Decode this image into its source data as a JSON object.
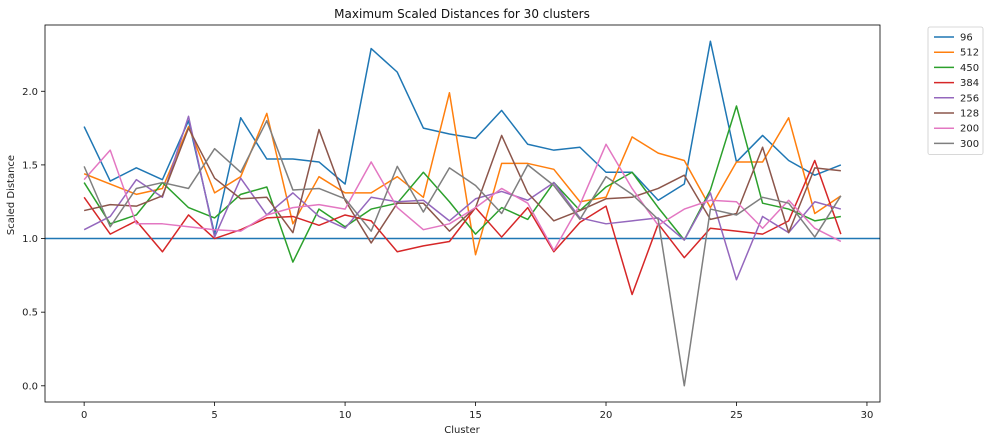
{
  "chart_data": {
    "type": "line",
    "title": "Maximum Scaled Distances for 30 clusters",
    "xlabel": "Cluster",
    "ylabel": "Scaled Distance",
    "xlim": [
      -1.5,
      30.5
    ],
    "ylim": [
      -0.11,
      2.45
    ],
    "xticks": [
      0,
      5,
      10,
      15,
      20,
      25,
      30
    ],
    "yticks": [
      0.0,
      0.5,
      1.0,
      1.5,
      2.0
    ],
    "grid": false,
    "legend_position": "outside-top-right",
    "reference_line": {
      "y": 1.0,
      "color": "#1f77b4"
    },
    "x": [
      0,
      1,
      2,
      3,
      4,
      5,
      6,
      7,
      8,
      9,
      10,
      11,
      12,
      13,
      14,
      15,
      16,
      17,
      18,
      19,
      20,
      21,
      22,
      23,
      24,
      25,
      26,
      27,
      28,
      29
    ],
    "series": [
      {
        "name": "96",
        "color": "#1f77b4",
        "values": [
          1.76,
          1.39,
          1.48,
          1.4,
          1.8,
          1.03,
          1.82,
          1.54,
          1.54,
          1.52,
          1.37,
          2.29,
          2.13,
          1.75,
          1.71,
          1.68,
          1.87,
          1.64,
          1.6,
          1.62,
          1.45,
          1.45,
          1.26,
          1.37,
          2.34,
          1.52,
          1.7,
          1.53,
          1.43,
          1.5
        ]
      },
      {
        "name": "512",
        "color": "#ff7f0e",
        "values": [
          1.44,
          1.37,
          1.3,
          1.34,
          1.76,
          1.31,
          1.42,
          1.85,
          1.1,
          1.42,
          1.31,
          1.31,
          1.42,
          1.28,
          1.99,
          0.89,
          1.51,
          1.51,
          1.47,
          1.25,
          1.28,
          1.69,
          1.58,
          1.53,
          1.21,
          1.52,
          1.52,
          1.82,
          1.17,
          1.29
        ]
      },
      {
        "name": "450",
        "color": "#2ca02c",
        "values": [
          1.38,
          1.1,
          1.16,
          1.38,
          1.21,
          1.14,
          1.3,
          1.35,
          0.84,
          1.2,
          1.08,
          1.2,
          1.24,
          1.45,
          1.25,
          1.03,
          1.21,
          1.13,
          1.38,
          1.19,
          1.35,
          1.45,
          1.21,
          0.99,
          1.33,
          1.9,
          1.24,
          1.2,
          1.12,
          1.15
        ]
      },
      {
        "name": "384",
        "color": "#d62728",
        "values": [
          1.28,
          1.03,
          1.12,
          0.91,
          1.16,
          1.0,
          1.06,
          1.14,
          1.15,
          1.09,
          1.16,
          1.12,
          0.91,
          0.95,
          0.98,
          1.21,
          1.01,
          1.21,
          0.91,
          1.11,
          1.22,
          0.62,
          1.1,
          0.87,
          1.07,
          1.05,
          1.03,
          1.12,
          1.53,
          1.03
        ]
      },
      {
        "name": "256",
        "color": "#9467bd",
        "values": [
          1.06,
          1.15,
          1.4,
          1.28,
          1.83,
          1.01,
          1.41,
          1.16,
          1.31,
          1.15,
          1.07,
          1.28,
          1.25,
          1.26,
          1.12,
          1.27,
          1.32,
          1.26,
          1.38,
          1.14,
          1.1,
          1.12,
          1.14,
          0.99,
          1.31,
          0.72,
          1.15,
          1.04,
          1.25,
          1.2
        ]
      },
      {
        "name": "128",
        "color": "#8c564b",
        "values": [
          1.19,
          1.23,
          1.22,
          1.29,
          1.75,
          1.41,
          1.27,
          1.28,
          1.04,
          1.74,
          1.26,
          0.97,
          1.24,
          1.24,
          1.05,
          1.21,
          1.7,
          1.31,
          1.12,
          1.19,
          1.27,
          1.28,
          1.34,
          1.43,
          1.13,
          1.17,
          1.62,
          1.04,
          1.48,
          1.46
        ]
      },
      {
        "name": "200",
        "color": "#e377c2",
        "values": [
          1.4,
          1.6,
          1.1,
          1.1,
          1.08,
          1.06,
          1.05,
          1.16,
          1.21,
          1.23,
          1.2,
          1.52,
          1.21,
          1.06,
          1.1,
          1.21,
          1.34,
          1.24,
          0.92,
          1.23,
          1.64,
          1.34,
          1.09,
          1.2,
          1.26,
          1.25,
          1.07,
          1.26,
          1.07,
          0.98
        ]
      },
      {
        "name": "300",
        "color": "#7f7f7f",
        "values": [
          1.49,
          1.08,
          1.34,
          1.38,
          1.34,
          1.61,
          1.45,
          1.8,
          1.33,
          1.34,
          1.27,
          1.05,
          1.49,
          1.18,
          1.48,
          1.36,
          1.17,
          1.5,
          1.36,
          1.13,
          1.42,
          1.3,
          1.13,
          0.0,
          1.2,
          1.16,
          1.28,
          1.24,
          1.01,
          1.29
        ]
      }
    ]
  }
}
